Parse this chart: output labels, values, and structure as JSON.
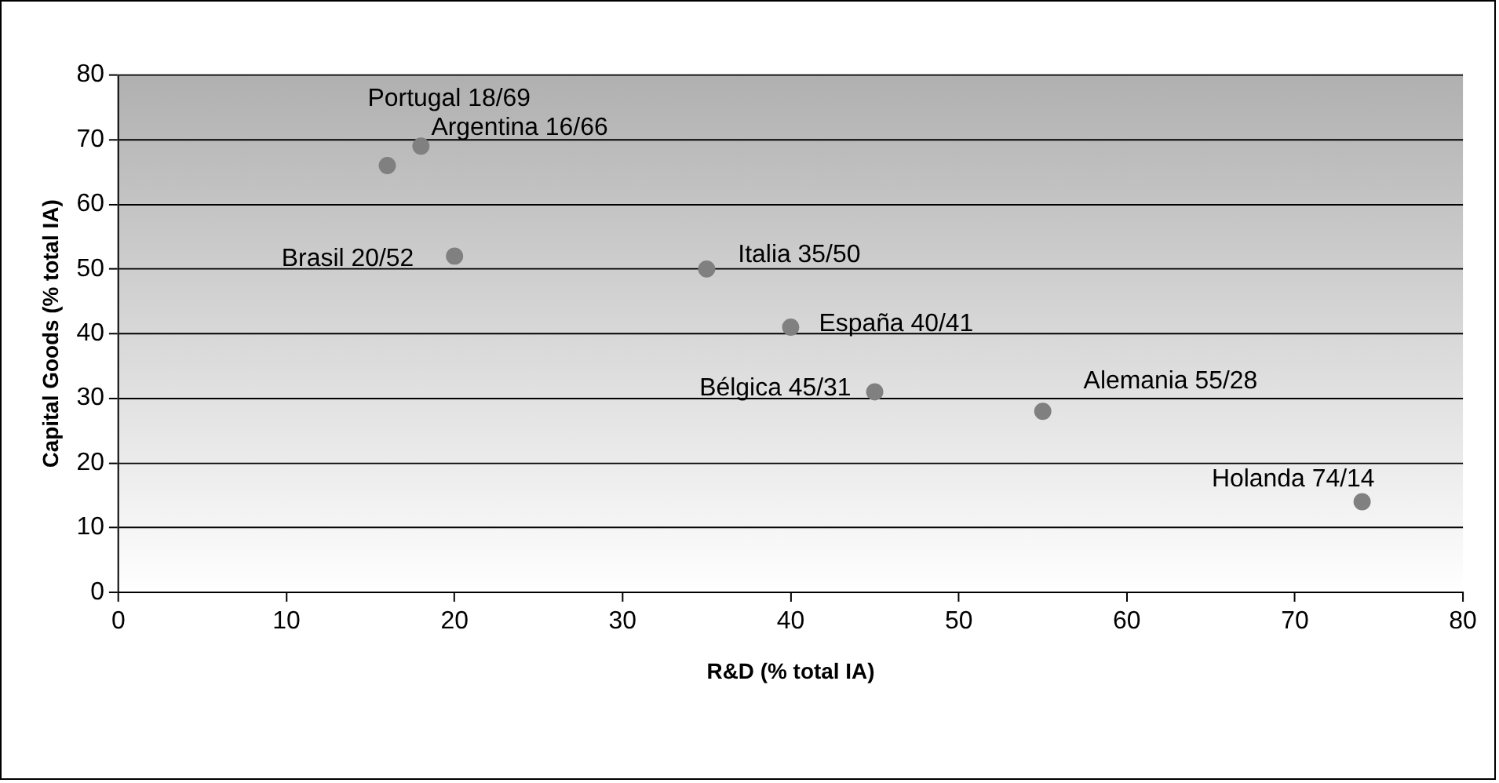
{
  "chart_data": {
    "type": "scatter",
    "xlabel": "R&D (% total IA)",
    "ylabel": "Capital Goods (% total IA)",
    "x": [
      18,
      16,
      20,
      35,
      40,
      45,
      55,
      74
    ],
    "values": [
      69,
      66,
      52,
      50,
      41,
      31,
      28,
      14
    ],
    "color": "#808080",
    "marker": "circle",
    "grid": "y",
    "legend": false,
    "xlim": [
      0,
      80
    ],
    "xticks": [
      0,
      10,
      20,
      30,
      40,
      50,
      60,
      70,
      80
    ],
    "ylim": [
      0,
      80
    ],
    "yticks": [
      0,
      10,
      20,
      30,
      40,
      50,
      60,
      70,
      80
    ],
    "annotations": [
      {
        "text": "Portugal 18/69",
        "x": 18,
        "y": 69
      },
      {
        "text": "Argentina 16/66",
        "x": 16,
        "y": 66
      },
      {
        "text": "Brasil 20/52",
        "x": 20,
        "y": 52
      },
      {
        "text": "Italia 35/50",
        "x": 35,
        "y": 50
      },
      {
        "text": "España 40/41",
        "x": 40,
        "y": 41
      },
      {
        "text": "Bélgica 45/31",
        "x": 45,
        "y": 31
      },
      {
        "text": "Alemania 55/28",
        "x": 55,
        "y": 28
      },
      {
        "text": "Holanda 74/14",
        "x": 74,
        "y": 14
      }
    ]
  }
}
